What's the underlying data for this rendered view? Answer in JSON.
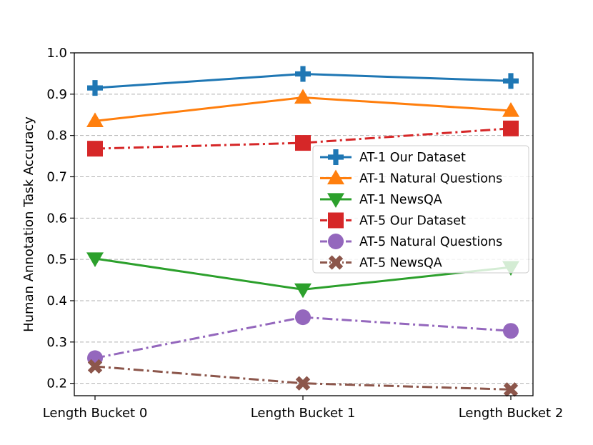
{
  "chart_data": {
    "type": "line",
    "categories": [
      "Length Bucket 0",
      "Length Bucket 1",
      "Length Bucket 2"
    ],
    "ylabel": "Human Annotation Task Accuracy",
    "xlabel": "",
    "ylim": [
      0.17,
      1.0
    ],
    "yticks": [
      "0.2",
      "0.3",
      "0.4",
      "0.5",
      "0.6",
      "0.7",
      "0.8",
      "0.9",
      "1.0"
    ],
    "grid": "horizontal dashed",
    "legend_position": "center-right",
    "series": [
      {
        "name": "AT-1 Our Dataset",
        "values": [
          0.915,
          0.949,
          0.932
        ],
        "color": "#1f77b4",
        "marker": "plus",
        "dash": "solid"
      },
      {
        "name": "AT-1 Natural Questions",
        "values": [
          0.835,
          0.892,
          0.86
        ],
        "color": "#ff7f0e",
        "marker": "triangle-up",
        "dash": "solid"
      },
      {
        "name": "AT-1 NewsQA",
        "values": [
          0.502,
          0.427,
          0.481
        ],
        "color": "#2ca02c",
        "marker": "triangle-down",
        "dash": "solid"
      },
      {
        "name": "AT-5 Our Dataset",
        "values": [
          0.768,
          0.782,
          0.817
        ],
        "color": "#d62728",
        "marker": "square",
        "dash": "dashdot"
      },
      {
        "name": "AT-5 Natural Questions",
        "values": [
          0.261,
          0.36,
          0.327
        ],
        "color": "#9467bd",
        "marker": "circle",
        "dash": "dashdot"
      },
      {
        "name": "AT-5 NewsQA",
        "values": [
          0.241,
          0.2,
          0.185
        ],
        "color": "#8c564b",
        "marker": "x",
        "dash": "dashdot"
      }
    ]
  }
}
